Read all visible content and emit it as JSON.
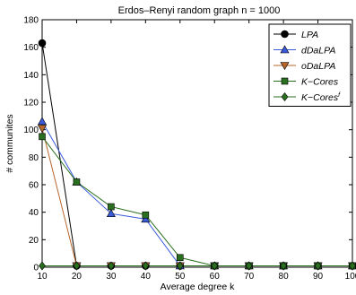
{
  "chart_data": {
    "type": "line",
    "title": "Erdos–Renyi random graph   n = 1000",
    "xlabel": "Average degree k",
    "ylabel": "# communites",
    "xlim": [
      10,
      100
    ],
    "ylim": [
      0,
      180
    ],
    "xticks": [
      10,
      20,
      30,
      40,
      50,
      60,
      70,
      80,
      90,
      100
    ],
    "yticks": [
      0,
      20,
      40,
      60,
      80,
      100,
      120,
      140,
      160,
      180
    ],
    "grid": false,
    "legend_position": "top-right",
    "x": [
      10,
      20,
      30,
      40,
      50,
      60,
      70,
      80,
      90,
      100
    ],
    "series": [
      {
        "name": "LPA",
        "sup": "",
        "color": "#000000",
        "marker": "circle",
        "values": [
          163,
          1,
          1,
          1,
          1,
          1,
          1,
          1,
          1,
          1
        ]
      },
      {
        "name": "dDaLPA",
        "sup": "",
        "color": "#3b5bdb",
        "marker": "triangle-up",
        "values": [
          106,
          62,
          39,
          35,
          1,
          1,
          1,
          1,
          1,
          1
        ]
      },
      {
        "name": "oDaLPA",
        "sup": "",
        "color": "#b8652a",
        "marker": "triangle-down",
        "values": [
          101,
          1,
          1,
          1,
          1,
          1,
          1,
          1,
          1,
          1
        ]
      },
      {
        "name": "K−Cores",
        "sup": "",
        "color": "#2a6e1f",
        "marker": "square",
        "values": [
          95,
          62,
          44,
          38,
          7,
          1,
          1,
          1,
          1,
          1
        ]
      },
      {
        "name": "K−Cores",
        "sup": "f",
        "color": "#2a6e1f",
        "marker": "diamond",
        "values": [
          1,
          1,
          1,
          1,
          1,
          1,
          1,
          1,
          1,
          1
        ]
      }
    ]
  }
}
